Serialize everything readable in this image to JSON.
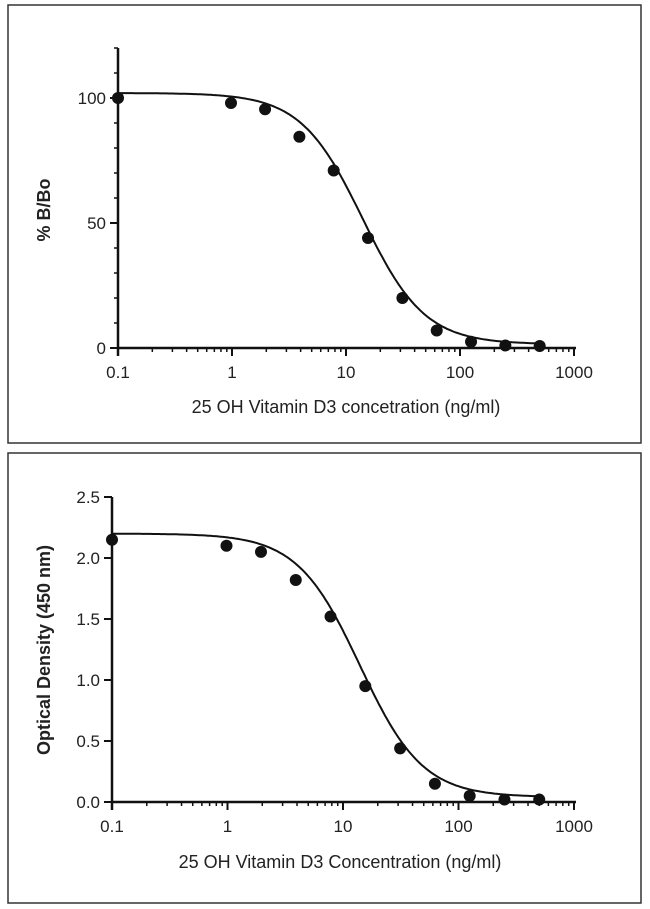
{
  "chart_data": [
    {
      "type": "scatter",
      "xlabel": "25 OH Vitamin D3 concetration (ng/ml)",
      "ylabel": "% B/Bo",
      "xscale": "log",
      "xlim": [
        0.1,
        1000
      ],
      "ylim": [
        0,
        120
      ],
      "xticks": [
        "0.1",
        "1",
        "10",
        "100",
        "1000"
      ],
      "yticks": [
        "0",
        "50",
        "100"
      ],
      "ytick_values": [
        0,
        50,
        100
      ],
      "xtick_values": [
        0.1,
        1,
        10,
        100,
        1000
      ],
      "grid": false,
      "fitted_curve": "sigmoidal",
      "series": [
        {
          "x": [
            0.1,
            0.98,
            1.95,
            3.9,
            7.8,
            15.6,
            31.25,
            62.5,
            125,
            250,
            500
          ],
          "y": [
            100,
            98,
            95.5,
            84.5,
            71,
            44,
            20,
            7,
            2.5,
            1,
            0.8
          ]
        }
      ]
    },
    {
      "type": "scatter",
      "xlabel": "25 OH Vitamin D3 Concentration (ng/ml)",
      "ylabel": "Optical Density (450 nm)",
      "xscale": "log",
      "xlim": [
        0.1,
        1000
      ],
      "ylim": [
        0,
        2.5
      ],
      "xticks": [
        "0.1",
        "1",
        "10",
        "100",
        "1000"
      ],
      "yticks": [
        "0.0",
        "0.5",
        "1.0",
        "1.5",
        "2.0",
        "2.5"
      ],
      "ytick_values": [
        0,
        0.5,
        1.0,
        1.5,
        2.0,
        2.5
      ],
      "xtick_values": [
        0.1,
        1,
        10,
        100,
        1000
      ],
      "grid": false,
      "fitted_curve": "sigmoidal",
      "series": [
        {
          "x": [
            0.1,
            0.98,
            1.95,
            3.9,
            7.8,
            15.6,
            31.25,
            62.5,
            125,
            250,
            500
          ],
          "y": [
            2.15,
            2.1,
            2.05,
            1.82,
            1.52,
            0.95,
            0.44,
            0.15,
            0.05,
            0.02,
            0.02
          ]
        }
      ]
    }
  ]
}
